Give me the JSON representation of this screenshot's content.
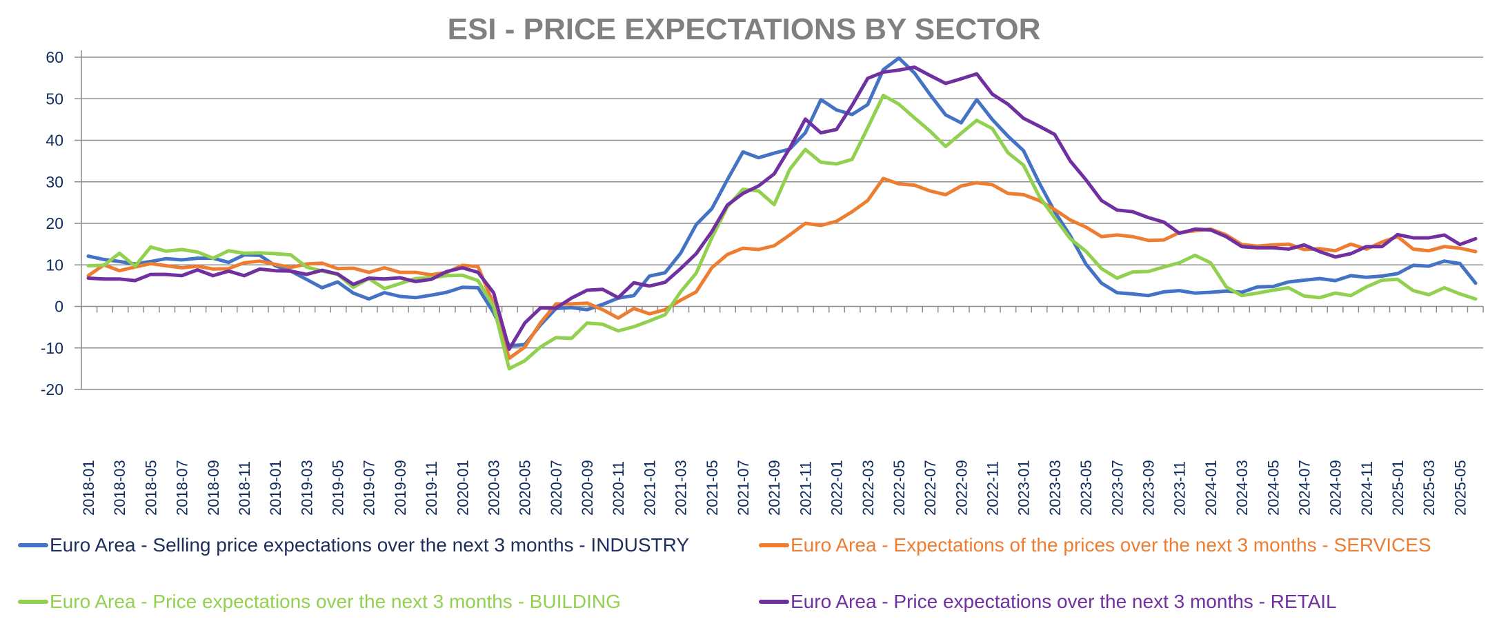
{
  "chart_data": {
    "type": "line",
    "title": "ESI - PRICE EXPECTATIONS BY SECTOR",
    "xlabel": "",
    "ylabel": "",
    "ylim": [
      -20,
      60
    ],
    "yticks": [
      60,
      50,
      40,
      30,
      20,
      10,
      0,
      -10,
      -20
    ],
    "grid": true,
    "legend_position": "bottom",
    "x_start": "2018-01",
    "x_end": "2025-06",
    "x_tick_labels": [
      "2018-01",
      "2018-03",
      "2018-05",
      "2018-07",
      "2018-09",
      "2018-11",
      "2019-01",
      "2019-03",
      "2019-05",
      "2019-07",
      "2019-09",
      "2019-11",
      "2020-01",
      "2020-03",
      "2020-05",
      "2020-07",
      "2020-09",
      "2020-11",
      "2021-01",
      "2021-03",
      "2021-05",
      "2021-07",
      "2021-09",
      "2021-11",
      "2022-01",
      "2022-03",
      "2022-05",
      "2022-07",
      "2022-09",
      "2022-11",
      "2023-01",
      "2023-03",
      "2023-05",
      "2023-07",
      "2023-09",
      "2023-11",
      "2024-01",
      "2024-03",
      "2024-05",
      "2024-07",
      "2024-09",
      "2024-11",
      "2025-01",
      "2025-03",
      "2025-05"
    ],
    "series": [
      {
        "name": "Euro Area - Selling price expectations over the next 3 months - INDUSTRY",
        "color": "#4472c4",
        "label_color": "#1f2d5a",
        "values": [
          12.1,
          11.3,
          10.8,
          10.2,
          10.8,
          11.5,
          11.2,
          11.6,
          11.6,
          10.6,
          12.4,
          12.3,
          9.8,
          8.5,
          6.5,
          4.5,
          5.9,
          3.2,
          1.8,
          3.3,
          2.4,
          2.1,
          2.7,
          3.4,
          4.6,
          4.5,
          -1.5,
          -9.5,
          -9.2,
          -4.5,
          -0.5,
          -0.3,
          -0.8,
          0.5,
          2.0,
          2.6,
          7.3,
          8.1,
          12.8,
          19.7,
          23.5,
          30.5,
          37.2,
          35.8,
          36.9,
          37.9,
          41.8,
          49.8,
          47.3,
          46.2,
          48.6,
          57.0,
          59.8,
          56.2,
          51.0,
          46.1,
          44.2,
          49.8,
          45.0,
          41.0,
          37.5,
          29.8,
          22.8,
          17.0,
          10.2,
          5.6,
          3.3,
          3.0,
          2.6,
          3.5,
          3.8,
          3.2,
          3.4,
          3.7,
          3.4,
          4.7,
          4.8,
          5.9,
          6.3,
          6.7,
          6.2,
          7.4,
          7.0,
          7.3,
          7.9,
          9.9,
          9.7,
          10.9,
          10.3,
          5.6
        ]
      },
      {
        "name": "Euro Area - Expectations of the prices over the next 3 months - SERVICES",
        "color": "#ed7d31",
        "label_color": "#ed7d31",
        "values": [
          7.4,
          10.0,
          8.6,
          9.5,
          10.3,
          9.8,
          9.3,
          9.7,
          9.0,
          9.1,
          10.5,
          10.9,
          10.1,
          9.4,
          10.2,
          10.4,
          9.1,
          9.2,
          8.2,
          9.3,
          8.2,
          8.2,
          7.6,
          8.2,
          9.9,
          9.6,
          0.5,
          -12.5,
          -9.8,
          -4.0,
          0.6,
          0.6,
          0.8,
          -0.8,
          -2.8,
          -0.5,
          -1.8,
          -0.8,
          1.5,
          3.5,
          9.3,
          12.5,
          14.0,
          13.7,
          14.6,
          17.2,
          20.0,
          19.5,
          20.5,
          22.8,
          25.5,
          30.8,
          29.5,
          29.2,
          27.8,
          26.9,
          29.0,
          29.8,
          29.3,
          27.2,
          26.9,
          25.5,
          23.3,
          20.8,
          19.1,
          16.8,
          17.2,
          16.8,
          15.9,
          16.0,
          17.8,
          18.2,
          18.6,
          17.2,
          14.9,
          14.5,
          14.8,
          15.0,
          13.7,
          13.9,
          13.4,
          15.0,
          13.8,
          15.5,
          16.8,
          13.8,
          13.4,
          14.4,
          14.0,
          13.2
        ]
      },
      {
        "name": "Euro Area - Price expectations over the next 3 months - BUILDING",
        "color": "#92d050",
        "label_color": "#92d050",
        "values": [
          9.8,
          9.9,
          12.8,
          9.7,
          14.3,
          13.3,
          13.7,
          13.1,
          11.6,
          13.4,
          12.8,
          12.9,
          12.7,
          12.4,
          9.5,
          8.5,
          7.7,
          4.6,
          6.7,
          4.3,
          5.5,
          6.7,
          6.9,
          7.4,
          7.5,
          6.2,
          0.0,
          -15.0,
          -13.1,
          -9.8,
          -7.5,
          -7.7,
          -4.0,
          -4.3,
          -5.9,
          -4.9,
          -3.5,
          -2.0,
          3.5,
          8.0,
          16.5,
          24.0,
          28.2,
          27.8,
          24.5,
          33.0,
          37.8,
          34.7,
          34.3,
          35.4,
          43.0,
          50.8,
          48.7,
          45.4,
          42.2,
          38.5,
          41.7,
          44.8,
          42.8,
          37.0,
          34.0,
          26.5,
          21.3,
          16.3,
          13.3,
          9.1,
          6.8,
          8.3,
          8.4,
          9.5,
          10.5,
          12.3,
          10.5,
          4.7,
          2.6,
          3.2,
          3.9,
          4.5,
          2.5,
          2.1,
          3.2,
          2.6,
          4.7,
          6.3,
          6.5,
          3.8,
          2.8,
          4.5,
          3.0,
          1.8
        ]
      },
      {
        "name": "Euro Area - Price expectations over the next 3 months - RETAIL",
        "color": "#7030a0",
        "label_color": "#7030a0",
        "values": [
          6.8,
          6.6,
          6.6,
          6.2,
          7.7,
          7.7,
          7.4,
          8.8,
          7.4,
          8.5,
          7.4,
          9.0,
          8.6,
          8.5,
          7.7,
          8.7,
          7.8,
          5.3,
          6.8,
          6.6,
          6.9,
          6.0,
          6.5,
          8.4,
          9.3,
          8.2,
          3.3,
          -10.3,
          -4.0,
          -0.4,
          -0.4,
          2.0,
          3.9,
          4.1,
          2.1,
          5.7,
          4.9,
          5.8,
          9.1,
          12.7,
          18.0,
          24.4,
          27.2,
          29.0,
          31.9,
          38.1,
          45.1,
          41.8,
          42.6,
          48.4,
          54.9,
          56.4,
          56.9,
          57.6,
          55.6,
          53.7,
          54.8,
          56.0,
          51.1,
          48.7,
          45.3,
          43.4,
          41.4,
          35.0,
          30.5,
          25.5,
          23.2,
          22.8,
          21.4,
          20.3,
          17.6,
          18.6,
          18.4,
          16.8,
          14.4,
          14.1,
          14.1,
          13.8,
          14.8,
          13.2,
          11.9,
          12.7,
          14.4,
          14.4,
          17.3,
          16.5,
          16.5,
          17.2,
          14.9,
          16.3
        ]
      }
    ]
  }
}
